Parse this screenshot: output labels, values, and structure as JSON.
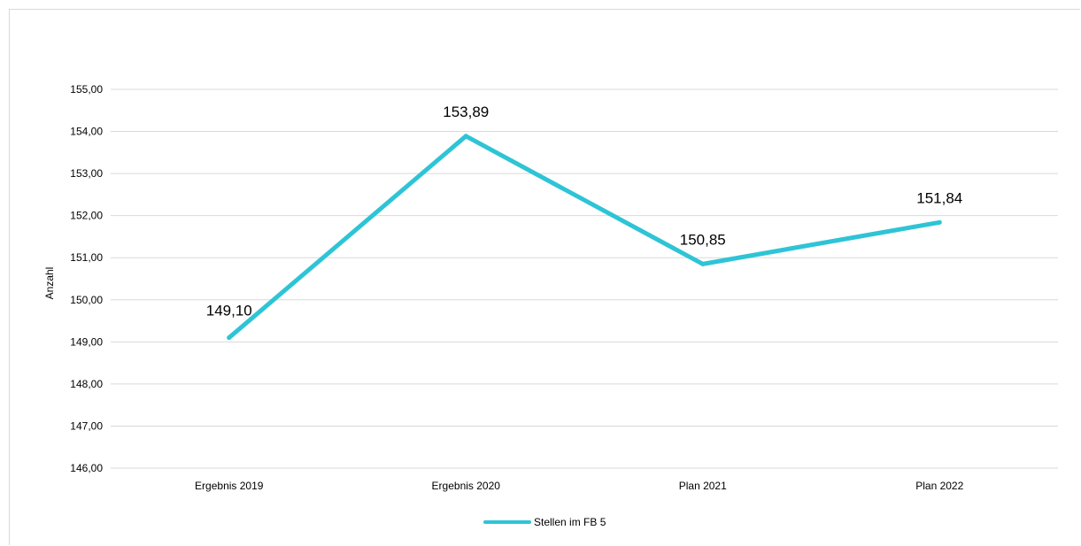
{
  "chart_data": {
    "type": "line",
    "title": "",
    "xlabel": "",
    "ylabel": "Anzahl",
    "categories": [
      "Ergebnis 2019",
      "Ergebnis 2020",
      "Plan 2021",
      "Plan 2022"
    ],
    "series": [
      {
        "name": "Stellen im FB 5",
        "values": [
          149.1,
          153.89,
          150.85,
          151.84
        ],
        "labels": [
          "149,10",
          "153,89",
          "150,85",
          "151,84"
        ],
        "color": "#2ec4d6"
      }
    ],
    "ylim": [
      146,
      155
    ],
    "yticks": [
      146,
      147,
      148,
      149,
      150,
      151,
      152,
      153,
      154,
      155
    ],
    "ytick_labels": [
      "146,00",
      "147,00",
      "148,00",
      "149,00",
      "150,00",
      "151,00",
      "152,00",
      "153,00",
      "154,00",
      "155,00"
    ],
    "grid": true,
    "legend_position": "bottom",
    "gridline_color": "#d9d9d9"
  }
}
